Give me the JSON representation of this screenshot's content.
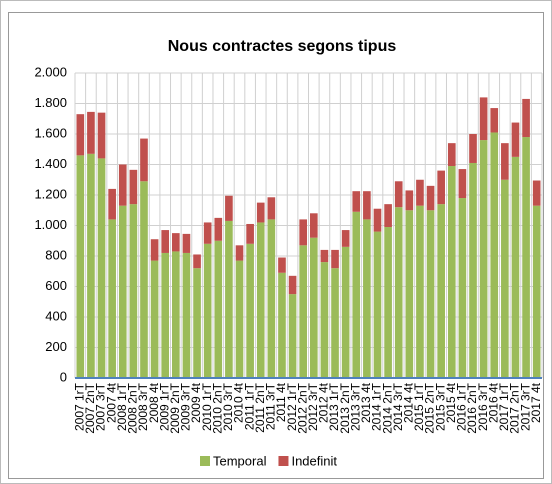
{
  "chart_data": {
    "type": "stacked_bar",
    "title": "Nous contractes segons tipus",
    "categories": [
      "2007 1rT",
      "2007 2nT",
      "2007 3rT",
      "2007 4t",
      "2008 1rT",
      "2008 2nT",
      "2008 3rT",
      "2008 4t",
      "2009 1rT",
      "2009 2nT",
      "2009 3rT",
      "2009 4t",
      "2010 1rT",
      "2010 2nT",
      "2010 3rT",
      "2010 4t",
      "2011 1rT",
      "2011 2nT",
      "2011 3rT",
      "2011 4t",
      "2012 1rT",
      "2012 2nT",
      "2012 3rT",
      "2012 4t",
      "2013 1rT",
      "2013 2nT",
      "2013 3rT",
      "2013 4t",
      "2014 1rT",
      "2014 2nT",
      "2014 3rT",
      "2014 4t",
      "2015 1rT",
      "2015 2nT",
      "2015 3rT",
      "2015 4t",
      "2016 1rT",
      "2016 2nT",
      "2016 3rT",
      "2016 4t",
      "2017 1rT",
      "2017 2nT",
      "2017 3rT",
      "2017 4t"
    ],
    "series": [
      {
        "name": "Temporal",
        "color": "#9bbb59",
        "values": [
          1460,
          1470,
          1440,
          1040,
          1130,
          1140,
          1290,
          770,
          820,
          830,
          820,
          720,
          880,
          900,
          1030,
          770,
          880,
          1020,
          1040,
          690,
          550,
          870,
          920,
          760,
          720,
          860,
          1090,
          1040,
          960,
          990,
          1120,
          1100,
          1130,
          1100,
          1140,
          1390,
          1180,
          1410,
          1560,
          1610,
          1300,
          1450,
          1580,
          1130
        ]
      },
      {
        "name": "Indefinit",
        "color": "#c0504d",
        "values": [
          270,
          275,
          300,
          200,
          270,
          225,
          280,
          140,
          150,
          120,
          125,
          90,
          140,
          150,
          165,
          100,
          130,
          130,
          145,
          100,
          120,
          170,
          160,
          80,
          120,
          110,
          135,
          185,
          150,
          150,
          170,
          130,
          170,
          160,
          220,
          150,
          190,
          190,
          280,
          160,
          240,
          225,
          250,
          165
        ]
      }
    ],
    "ylim": [
      0,
      2000
    ],
    "yticks": [
      0,
      200,
      400,
      600,
      800,
      {
        "value": 1000,
        "label": "1.000"
      },
      {
        "value": 1200,
        "label": "1.200"
      },
      {
        "value": 1400,
        "label": "1.400"
      },
      {
        "value": 1600,
        "label": "1.600"
      },
      {
        "value": 1800,
        "label": "1.800"
      },
      {
        "value": 2000,
        "label": "2.000"
      }
    ],
    "grid": true,
    "legend": "bottom"
  }
}
